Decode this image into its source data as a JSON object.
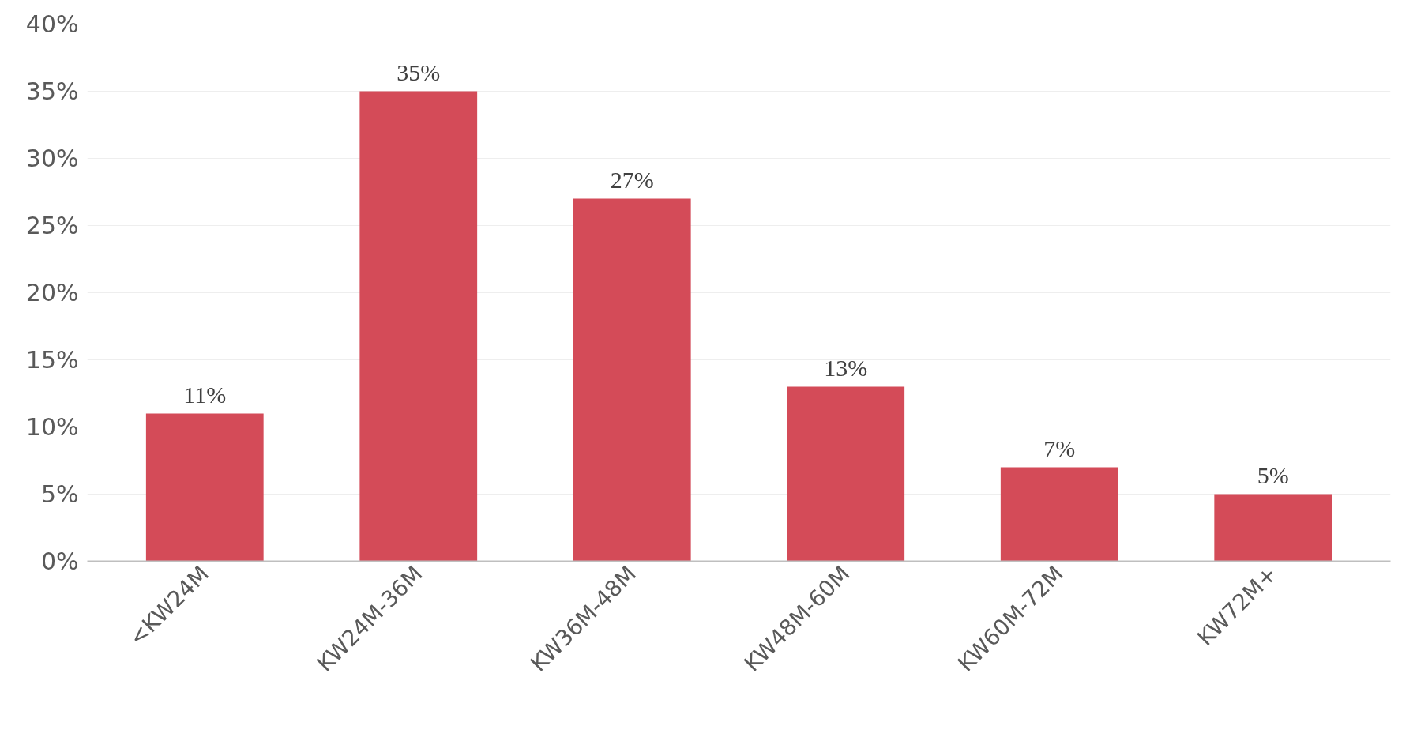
{
  "chart_data": {
    "type": "bar",
    "categories": [
      "<KW24M",
      "KW24M-36M",
      "KW36M-48M",
      "KW48M-60M",
      "KW60M-72M",
      "KW72M+"
    ],
    "values": [
      11,
      35,
      27,
      13,
      7,
      5
    ],
    "value_labels": [
      "11%",
      "35%",
      "27%",
      "13%",
      "7%",
      "5%"
    ],
    "color": "#d44b58",
    "ylim": [
      0,
      40
    ],
    "yticks": [
      {
        "value": 0,
        "label": "0%"
      },
      {
        "value": 5,
        "label": "5%"
      },
      {
        "value": 10,
        "label": "10%"
      },
      {
        "value": 15,
        "label": "15%"
      },
      {
        "value": 20,
        "label": "20%"
      },
      {
        "value": 25,
        "label": "25%"
      },
      {
        "value": 30,
        "label": "30%"
      },
      {
        "value": 35,
        "label": "35%"
      },
      {
        "value": 40,
        "label": "40%"
      }
    ],
    "grid": "y"
  }
}
